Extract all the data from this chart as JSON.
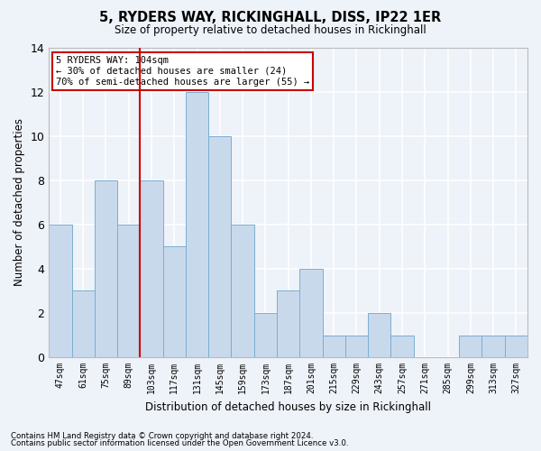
{
  "title": "5, RYDERS WAY, RICKINGHALL, DISS, IP22 1ER",
  "subtitle": "Size of property relative to detached houses in Rickinghall",
  "xlabel": "Distribution of detached houses by size in Rickinghall",
  "ylabel": "Number of detached properties",
  "categories": [
    "47sqm",
    "61sqm",
    "75sqm",
    "89sqm",
    "103sqm",
    "117sqm",
    "131sqm",
    "145sqm",
    "159sqm",
    "173sqm",
    "187sqm",
    "201sqm",
    "215sqm",
    "229sqm",
    "243sqm",
    "257sqm",
    "271sqm",
    "285sqm",
    "299sqm",
    "313sqm",
    "327sqm"
  ],
  "values": [
    6,
    3,
    8,
    6,
    8,
    5,
    12,
    10,
    6,
    2,
    3,
    4,
    1,
    1,
    2,
    1,
    0,
    0,
    1,
    1,
    1
  ],
  "bar_color": "#c9d9ec",
  "bar_edge_color": "#7aaed0",
  "highlight_index": 4,
  "highlight_line_color": "#cc0000",
  "annotation_text": "5 RYDERS WAY: 104sqm\n← 30% of detached houses are smaller (24)\n70% of semi-detached houses are larger (55) →",
  "annotation_box_color": "#ffffff",
  "annotation_box_edge_color": "#cc0000",
  "ylim": [
    0,
    14
  ],
  "yticks": [
    0,
    2,
    4,
    6,
    8,
    10,
    12,
    14
  ],
  "footer1": "Contains HM Land Registry data © Crown copyright and database right 2024.",
  "footer2": "Contains public sector information licensed under the Open Government Licence v3.0.",
  "background_color": "#eef2f9",
  "grid_color": "#ffffff"
}
